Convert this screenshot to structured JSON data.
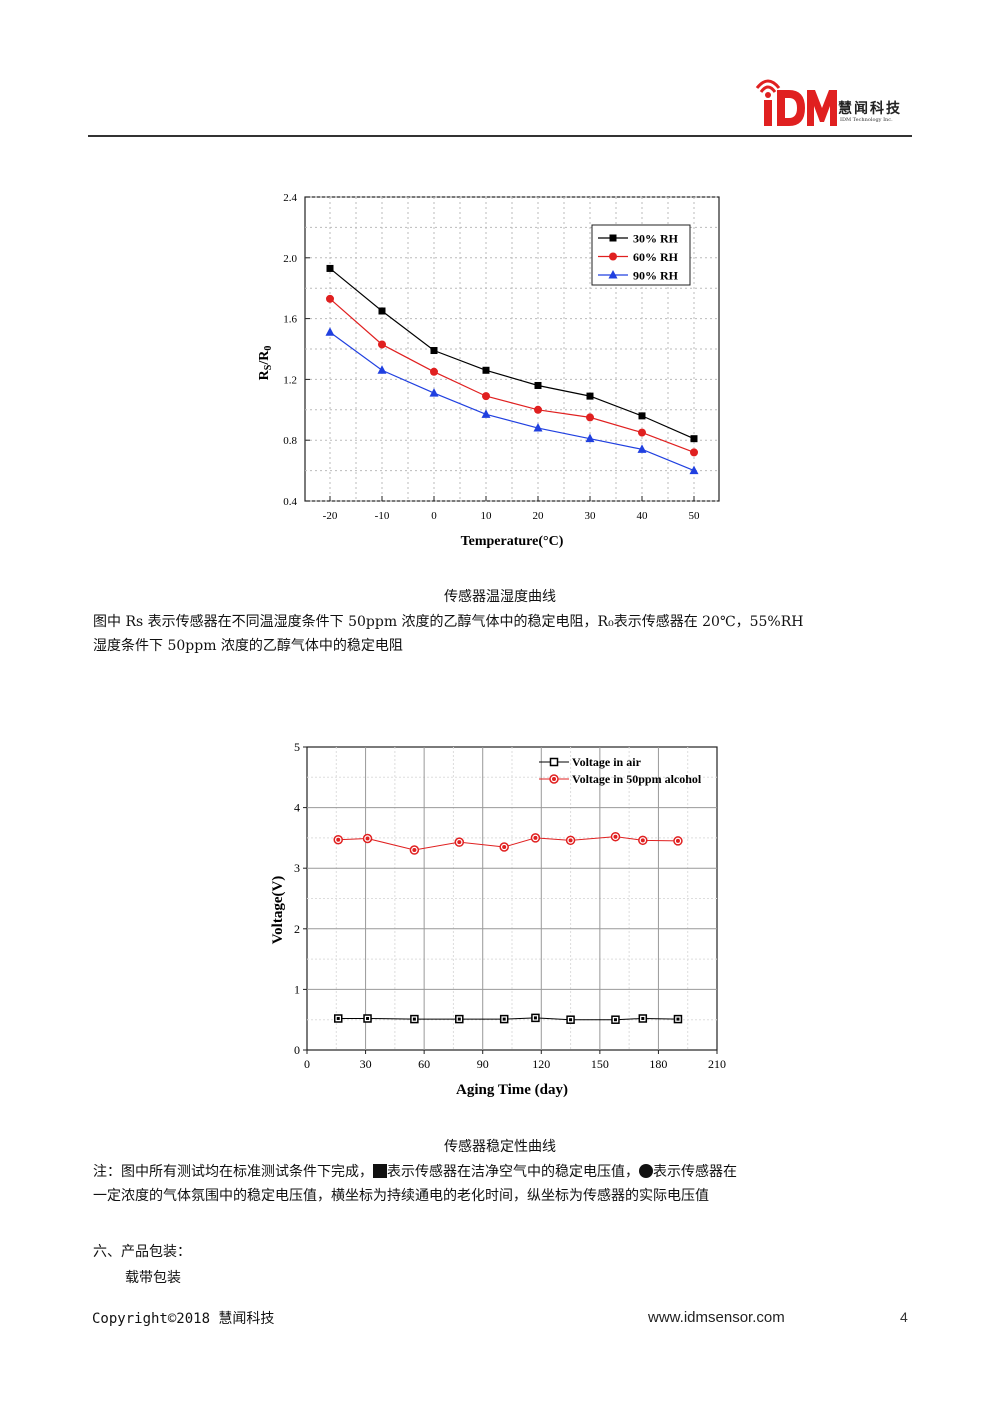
{
  "header": {
    "logo_text": "iDm",
    "company_cn": "慧闻科技",
    "company_en": "IDM Technology Inc."
  },
  "chart1": {
    "caption": "传感器温湿度曲线",
    "description": "图中 Rs 表示传感器在不同温湿度条件下 50ppm 浓度的乙醇气体中的稳定电阻，R₀表示传感器在 20℃，55%RH 湿度条件下 50ppm 浓度的乙醇气体中的稳定电阻",
    "description_line1": "图中 Rs 表示传感器在不同温湿度条件下 50ppm 浓度的乙醇气体中的稳定电阻，R₀表示传感器在 20℃，55%RH",
    "description_line2": "湿度条件下 50ppm 浓度的乙醇气体中的稳定电阻"
  },
  "chart2": {
    "caption": "传感器稳定性曲线",
    "note_line1_a": "注：图中所有测试均在标准测试条件下完成，",
    "note_line1_b": "表示传感器在洁净空气中的稳定电压值，",
    "note_line1_c": "表示传感器在",
    "note_line2": "一定浓度的气体氛围中的稳定电压值，横坐标为持续通电的老化时间，纵坐标为传感器的实际电压值"
  },
  "section": {
    "title": "六、产品包装：",
    "item": "载带包装"
  },
  "footer": {
    "copyright": "Copyright©2018 慧闻科技",
    "website": "www.idmsensor.com",
    "page_number": "4"
  },
  "chart_data": [
    {
      "type": "line",
      "xlabel": "Temperature(°C)",
      "ylabel": "RS/R0",
      "xlim": [
        -20,
        50
      ],
      "ylim": [
        0.4,
        2.4
      ],
      "x_ticks": [
        -20,
        -10,
        0,
        10,
        20,
        30,
        40,
        50
      ],
      "y_ticks": [
        0.4,
        0.8,
        1.2,
        1.6,
        2.0,
        2.4
      ],
      "grid": true,
      "legend_position": "top-right",
      "x": [
        -20,
        -10,
        0,
        10,
        20,
        30,
        40,
        50
      ],
      "series": [
        {
          "name": "30% RH",
          "color": "#000000",
          "marker": "square",
          "values": [
            1.93,
            1.65,
            1.39,
            1.26,
            1.16,
            1.09,
            0.96,
            0.81
          ]
        },
        {
          "name": "60% RH",
          "color": "#e02020",
          "marker": "circle",
          "values": [
            1.73,
            1.43,
            1.25,
            1.09,
            1.0,
            0.95,
            0.85,
            0.72
          ]
        },
        {
          "name": "90% RH",
          "color": "#2040e0",
          "marker": "triangle",
          "values": [
            1.51,
            1.26,
            1.11,
            0.97,
            0.88,
            0.81,
            0.74,
            0.6
          ]
        }
      ]
    },
    {
      "type": "line",
      "xlabel": "Aging Time (day)",
      "ylabel": "Voltage(V)",
      "xlim": [
        0,
        210
      ],
      "ylim": [
        0,
        5
      ],
      "x_ticks": [
        0,
        30,
        60,
        90,
        120,
        150,
        180,
        210
      ],
      "y_ticks": [
        0,
        1,
        2,
        3,
        4,
        5
      ],
      "grid": true,
      "legend_position": "top-right",
      "series": [
        {
          "name": "Voltage in air",
          "color": "#000000",
          "marker": "square",
          "x": [
            16,
            31,
            55,
            78,
            101,
            117,
            135,
            158,
            172,
            190
          ],
          "values": [
            0.52,
            0.52,
            0.51,
            0.51,
            0.51,
            0.53,
            0.5,
            0.5,
            0.52,
            0.51
          ]
        },
        {
          "name": "Voltage in 50ppm alcohol",
          "color": "#e02020",
          "marker": "circle",
          "x": [
            16,
            31,
            55,
            78,
            101,
            117,
            135,
            158,
            172,
            190
          ],
          "values": [
            3.47,
            3.49,
            3.3,
            3.43,
            3.35,
            3.5,
            3.46,
            3.52,
            3.46,
            3.45
          ]
        }
      ]
    }
  ]
}
